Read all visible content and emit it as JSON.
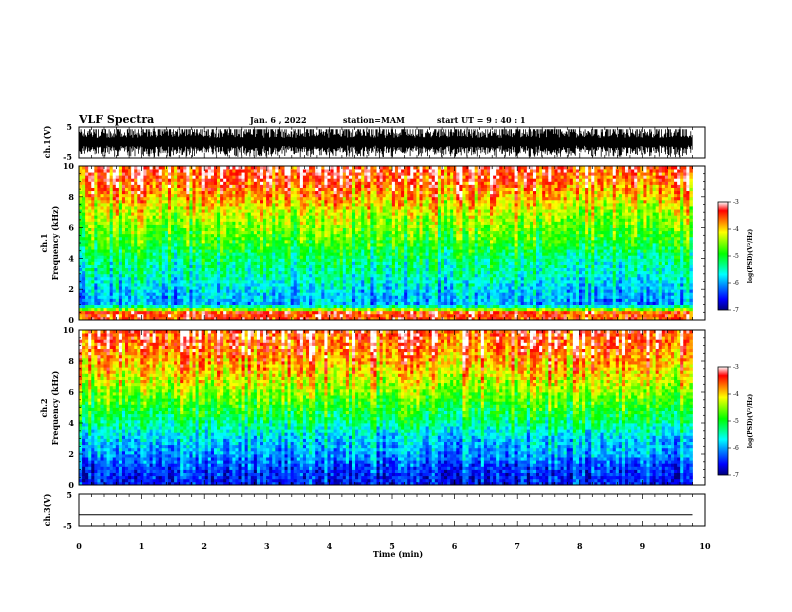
{
  "header": {
    "title": "VLF Spectra",
    "date": "Jan. 6 , 2022",
    "station": "station=MAM",
    "start": "start UT = 9 : 40 : 1"
  },
  "chart_data": [
    {
      "type": "line",
      "panel": "ch1-waveform",
      "ylabel": "ch.1(V)",
      "ylim": [
        -5,
        5
      ],
      "yticks": [
        "5",
        "-5"
      ],
      "xlim": [
        0,
        10
      ],
      "description_values": {
        "signal": "dense impulsive waveform spanning roughly -5 to +4 V over 0 to 9.8 min"
      }
    },
    {
      "type": "heatmap",
      "panel": "ch1-spectrogram",
      "ylabel": [
        "ch.1",
        "Frequency (kHz)"
      ],
      "ylim": [
        0,
        10
      ],
      "yticks": [
        "0",
        "2",
        "4",
        "6",
        "8",
        "10"
      ],
      "xlim": [
        0,
        10
      ],
      "data_extent_min": [
        0,
        9.8
      ],
      "colorbar": {
        "label": "log(PSD)(V²/Hz)",
        "range": [
          -7,
          -3
        ],
        "ticks": [
          "-3",
          "-4",
          "-5",
          "-6",
          "-7"
        ]
      },
      "approx_log_psd_by_freq_khz": [
        [
          0.5,
          -3.5
        ],
        [
          1,
          -6.0
        ],
        [
          2,
          -5.8
        ],
        [
          3,
          -5.5
        ],
        [
          4,
          -5.3
        ],
        [
          5,
          -4.9
        ],
        [
          6,
          -4.6
        ],
        [
          7,
          -4.3
        ],
        [
          8,
          -3.9
        ],
        [
          9,
          -3.5
        ],
        [
          10,
          -3.3
        ]
      ]
    },
    {
      "type": "heatmap",
      "panel": "ch2-spectrogram",
      "ylabel": [
        "ch.2",
        "Frequency (kHz)"
      ],
      "ylim": [
        0,
        10
      ],
      "yticks": [
        "0",
        "2",
        "4",
        "6",
        "8",
        "10"
      ],
      "xlim": [
        0,
        10
      ],
      "data_extent_min": [
        0,
        9.8
      ],
      "colorbar": {
        "label": "log(PSD)(V²/Hz)",
        "range": [
          -7,
          -3
        ],
        "ticks": [
          "-3",
          "-4",
          "-5",
          "-6",
          "-7"
        ]
      },
      "approx_log_psd_by_freq_khz": [
        [
          0.5,
          -6.5
        ],
        [
          1,
          -6.4
        ],
        [
          2,
          -6.0
        ],
        [
          3,
          -5.8
        ],
        [
          4,
          -5.3
        ],
        [
          5,
          -4.9
        ],
        [
          6,
          -4.5
        ],
        [
          7,
          -4.1
        ],
        [
          8,
          -3.8
        ],
        [
          9,
          -3.5
        ],
        [
          10,
          -3.3
        ]
      ]
    },
    {
      "type": "line",
      "panel": "ch3-waveform",
      "ylabel": "ch.3(V)",
      "ylim": [
        -5,
        5
      ],
      "yticks": [
        "5",
        "-5"
      ],
      "xlim": [
        0,
        10
      ],
      "x": [
        0,
        9.8
      ],
      "y": [
        -1.5,
        -1.5
      ]
    }
  ],
  "xaxis": {
    "label": "Time (min)",
    "ticks": [
      "0",
      "1",
      "2",
      "3",
      "4",
      "5",
      "6",
      "7",
      "8",
      "9",
      "10"
    ]
  },
  "colors": {
    "colormap": [
      "#00007a",
      "#0000ff",
      "#0080ff",
      "#00ffff",
      "#00ff80",
      "#00ff00",
      "#80ff00",
      "#ffff00",
      "#ff8000",
      "#ff0000",
      "#ffffff"
    ]
  }
}
